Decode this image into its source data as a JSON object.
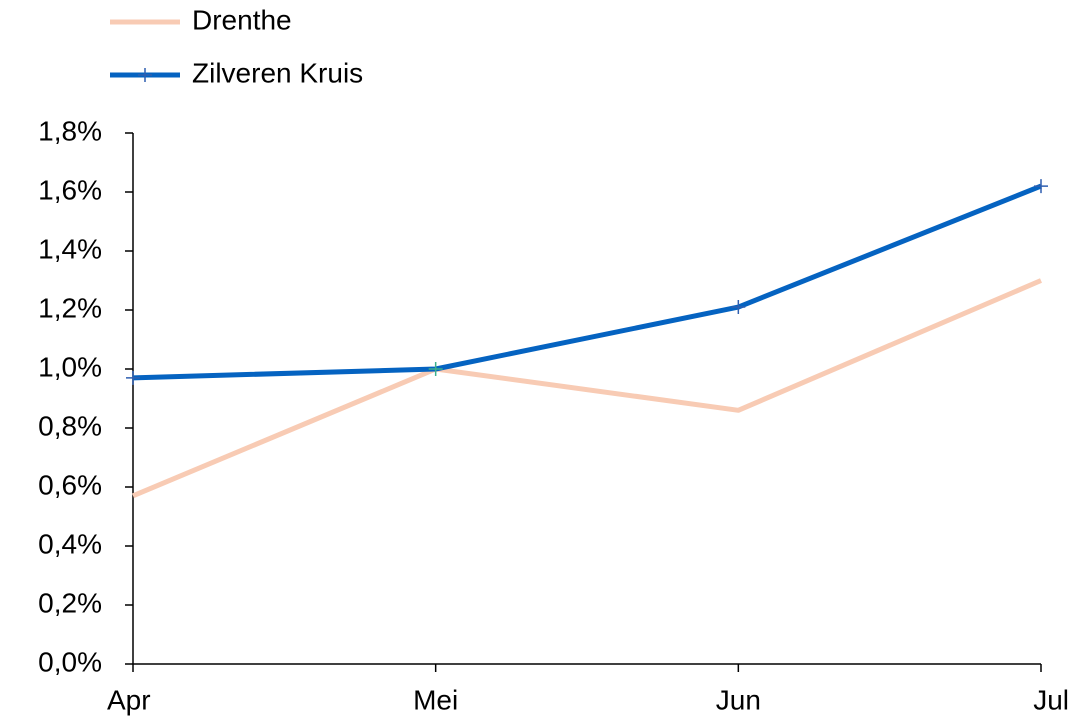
{
  "chart_data": {
    "type": "line",
    "categories": [
      "Apr",
      "Mei",
      "Jun",
      "Jul"
    ],
    "series": [
      {
        "name": "Drenthe",
        "color": "#f8cbb4",
        "marker": "none",
        "values": [
          0.57,
          1.0,
          0.86,
          1.3
        ]
      },
      {
        "name": "Zilveren Kruis",
        "color": "#0563c1",
        "marker": "plus",
        "values": [
          0.97,
          1.0,
          1.21,
          1.62
        ]
      }
    ],
    "ylim": [
      0,
      1.8
    ],
    "yticks": [
      {
        "value": 0,
        "label": "0,0%"
      },
      {
        "value": 0.2,
        "label": "0,2%"
      },
      {
        "value": 0.4,
        "label": "0,4%"
      },
      {
        "value": 0.6,
        "label": "0,6%"
      },
      {
        "value": 0.8,
        "label": "0,8%"
      },
      {
        "value": 1.0,
        "label": "1,0%"
      },
      {
        "value": 1.2,
        "label": "1,2%"
      },
      {
        "value": 1.4,
        "label": "1,4%"
      },
      {
        "value": 1.6,
        "label": "1,6%"
      },
      {
        "value": 1.8,
        "label": "1,8%"
      }
    ],
    "grid": false,
    "legend": "top-left"
  }
}
